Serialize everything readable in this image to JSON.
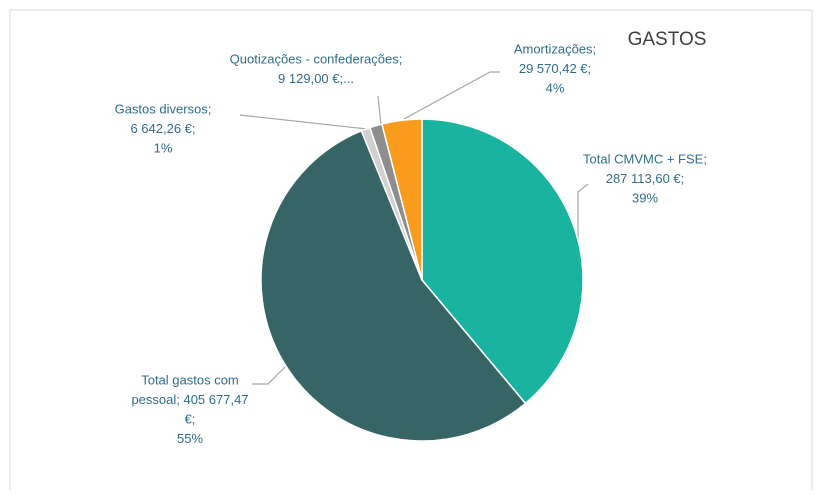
{
  "chart_data": {
    "type": "pie",
    "title": "GASTOS",
    "values": [
      287113.6,
      405677.47,
      6642.26,
      9129.0,
      29570.42
    ],
    "colors": [
      "#1ab3a0",
      "#376565",
      "#d0d0d0",
      "#8d8d8d",
      "#f99b1c"
    ],
    "data_labels": [
      [
        "Total CMVMC + FSE;",
        "287 113,60 €;",
        "39%"
      ],
      [
        "Total gastos com",
        "pessoal; 405 677,47",
        "€;",
        "55%"
      ],
      [
        "Gastos diversos;",
        "6 642,26 €;",
        "1%"
      ],
      [
        "Quotizações - confederações;",
        "9 129,00 €;..."
      ],
      [
        "Amortizações;",
        "29 570,42 €;",
        "4%"
      ]
    ]
  }
}
